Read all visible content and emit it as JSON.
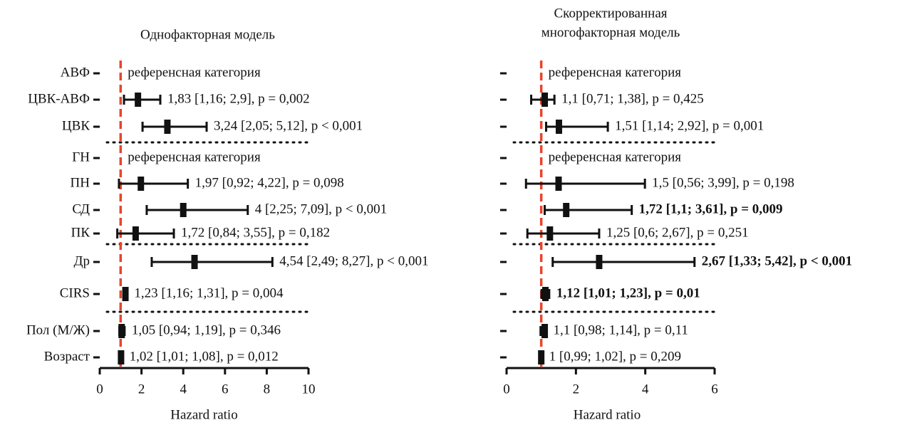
{
  "chart_data": [
    {
      "type": "forest",
      "title": [
        "Однофакторная модель"
      ],
      "xlabel": "Hazard ratio",
      "categories": [
        "АВФ",
        "ЦВК-АВФ",
        "ЦВК",
        "ГН",
        "ПН",
        "СД",
        "ПК",
        "Др",
        "CIRS",
        "Пол (М/Ж)",
        "Возраст"
      ],
      "values": [
        null,
        1.83,
        3.24,
        null,
        1.97,
        4,
        1.72,
        4.54,
        1.23,
        1.05,
        1.02
      ],
      "lower": [
        null,
        1.16,
        2.05,
        null,
        0.92,
        2.25,
        0.84,
        2.49,
        1.16,
        0.94,
        1.01
      ],
      "upper": [
        null,
        2.9,
        5.12,
        null,
        4.22,
        7.09,
        3.55,
        8.27,
        1.31,
        1.19,
        1.08
      ],
      "value_labels": [
        "референсная категория",
        "1,83 [1,16; 2,9], p = 0,002",
        "3,24 [2,05; 5,12], p < 0,001",
        "референсная категория",
        "1,97 [0,92; 4,22], p = 0,098",
        "4 [2,25; 7,09], p < 0,001",
        "1,72 [0,84; 3,55], p = 0,182",
        "4,54 [2,49; 8,27], p < 0,001",
        "1,23 [1,16; 1,31], p = 0,004",
        "1,05 [0,94; 1,19], p = 0,346",
        "1,02 [1,01; 1,08], p = 0,012"
      ],
      "bold": [
        false,
        false,
        false,
        false,
        false,
        false,
        false,
        false,
        false,
        false,
        false
      ],
      "reference_line": 1,
      "reference_color": "#e8442a",
      "color": "#111111",
      "xlim": [
        0,
        10
      ],
      "xticks": [
        0,
        2,
        4,
        6,
        8,
        10
      ]
    },
    {
      "type": "forest",
      "title": [
        "Скорректированная",
        "многофакторная модель"
      ],
      "xlabel": "Hazard ratio",
      "categories": [
        null,
        null,
        null,
        null,
        null,
        null,
        null,
        null,
        null,
        null,
        null
      ],
      "values": [
        null,
        1.1,
        1.51,
        null,
        1.5,
        1.72,
        1.25,
        2.67,
        1.12,
        1.1,
        1
      ],
      "lower": [
        null,
        0.71,
        1.14,
        null,
        0.56,
        1.1,
        0.6,
        1.33,
        1.01,
        0.98,
        0.99
      ],
      "upper": [
        null,
        1.38,
        2.92,
        null,
        3.99,
        3.61,
        2.67,
        5.42,
        1.23,
        1.14,
        1.02
      ],
      "value_labels": [
        "референсная категория",
        "1,1 [0,71; 1,38], p = 0,425",
        "1,51 [1,14; 2,92], p = 0,001",
        "референсная категория",
        "1,5 [0,56; 3,99], p = 0,198",
        "1,72 [1,1; 3,61], p = 0,009",
        "1,25 [0,6; 2,67], p = 0,251",
        "2,67 [1,33; 5,42], p < 0,001",
        "1,12 [1,01; 1,23], p = 0,01",
        "1,1 [0,98; 1,14], p = 0,11",
        "1 [0,99; 1,02], p = 0,209"
      ],
      "bold": [
        false,
        false,
        false,
        false,
        false,
        true,
        false,
        true,
        true,
        false,
        false
      ],
      "reference_line": 1,
      "reference_color": "#e8442a",
      "color": "#111111",
      "xlim": [
        0,
        6
      ],
      "xticks": [
        0,
        2,
        4,
        6
      ]
    }
  ]
}
